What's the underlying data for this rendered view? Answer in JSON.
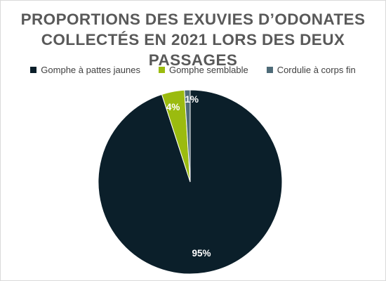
{
  "chart_data": {
    "type": "pie",
    "title_lines": [
      "PROPORTIONS DES EXUVIES D’ODONATES",
      "COLLECTÉS EN 2021 LORS DES DEUX PASSAGES"
    ],
    "legend_placement": "top",
    "slices": [
      {
        "name": "Gomphe à pattes jaunes",
        "value": 95,
        "label": "95%",
        "color": "#0b1f2a"
      },
      {
        "name": "Gomphe semblable",
        "value": 4,
        "label": "4%",
        "color": "#9bbb0f"
      },
      {
        "name": "Cordulie à corps fin",
        "value": 1,
        "label": "1%",
        "color": "#4e6b78"
      }
    ]
  }
}
